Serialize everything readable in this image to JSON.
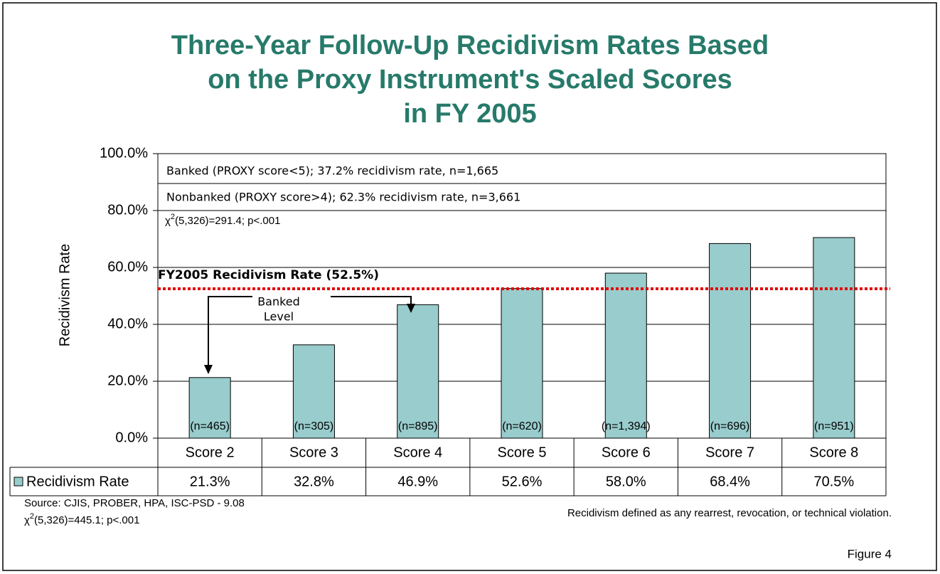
{
  "chart_data": {
    "type": "bar",
    "title": [
      "Three-Year Follow-Up Recidivism Rates Based",
      "on the Proxy Instrument's Scaled Scores",
      "in FY 2005"
    ],
    "y_label": "Recidivism Rate",
    "categories": [
      "Score 2",
      "Score 3",
      "Score 4",
      "Score 5",
      "Score 6",
      "Score 7",
      "Score 8"
    ],
    "series": [
      {
        "name": "Recidivism Rate",
        "color": "#99cccc",
        "values": [
          21.3,
          32.8,
          46.9,
          52.6,
          58.0,
          68.4,
          70.5
        ],
        "value_labels": [
          "21.3%",
          "32.8%",
          "46.9%",
          "52.6%",
          "58.0%",
          "68.4%",
          "70.5%"
        ]
      }
    ],
    "n_labels": [
      "(n=465)",
      "(n=305)",
      "(n=895)",
      "(n=620)",
      "(n=1,394)",
      "(n=696)",
      "(n=951)"
    ],
    "ylim": [
      0,
      100
    ],
    "yticks": [
      {
        "value": 0,
        "label": "0.0%"
      },
      {
        "value": 20,
        "label": "20.0%"
      },
      {
        "value": 40,
        "label": "40.0%"
      },
      {
        "value": 60,
        "label": "60.0%"
      },
      {
        "value": 80,
        "label": "80.0%"
      },
      {
        "value": 100,
        "label": "100.0%"
      }
    ],
    "grid": true,
    "reference_line": {
      "value": 52.5,
      "label": "FY2005 Recidivism Rate (52.5%)",
      "color": "#e00000"
    },
    "annotations": [
      "Banked (PROXY score<5); 37.2% recidivism rate, n=1,665",
      "Nonbanked (PROXY score>4); 62.3% recidivism rate, n=3,661"
    ],
    "stat_note": {
      "symbol": "χ",
      "sup": "2",
      "text": "(5,326)=291.4; p<.001"
    },
    "bracket_label": [
      "Banked",
      "Level"
    ],
    "source": "Source: CJIS, PROBER, HPA, ISC-PSD  - 9.08",
    "source_stat": {
      "symbol": "χ",
      "sup": "2",
      "text": "(5,326)=445.1; p<.001"
    },
    "footnote": "Recidivism defined as any rearrest, revocation, or technical violation.",
    "figure_label": "Figure 4"
  }
}
